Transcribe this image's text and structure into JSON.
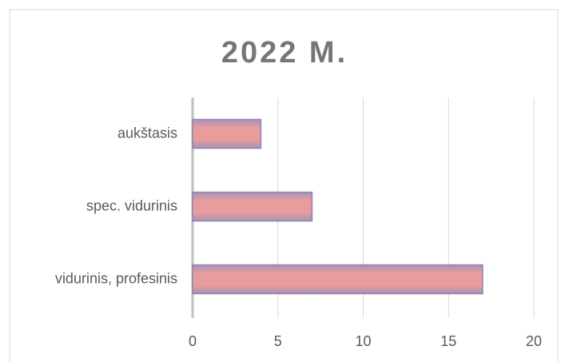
{
  "chart_data": {
    "type": "bar",
    "orientation": "horizontal",
    "title": "2022 M.",
    "categories": [
      "aukštasis",
      "spec. vidurinis",
      "vidurinis, profesinis"
    ],
    "values": [
      4,
      7,
      17
    ],
    "color": "#e89c9c",
    "xlim": [
      0,
      20
    ],
    "xticks": [
      0,
      5,
      10,
      15,
      20
    ],
    "grid": true
  }
}
